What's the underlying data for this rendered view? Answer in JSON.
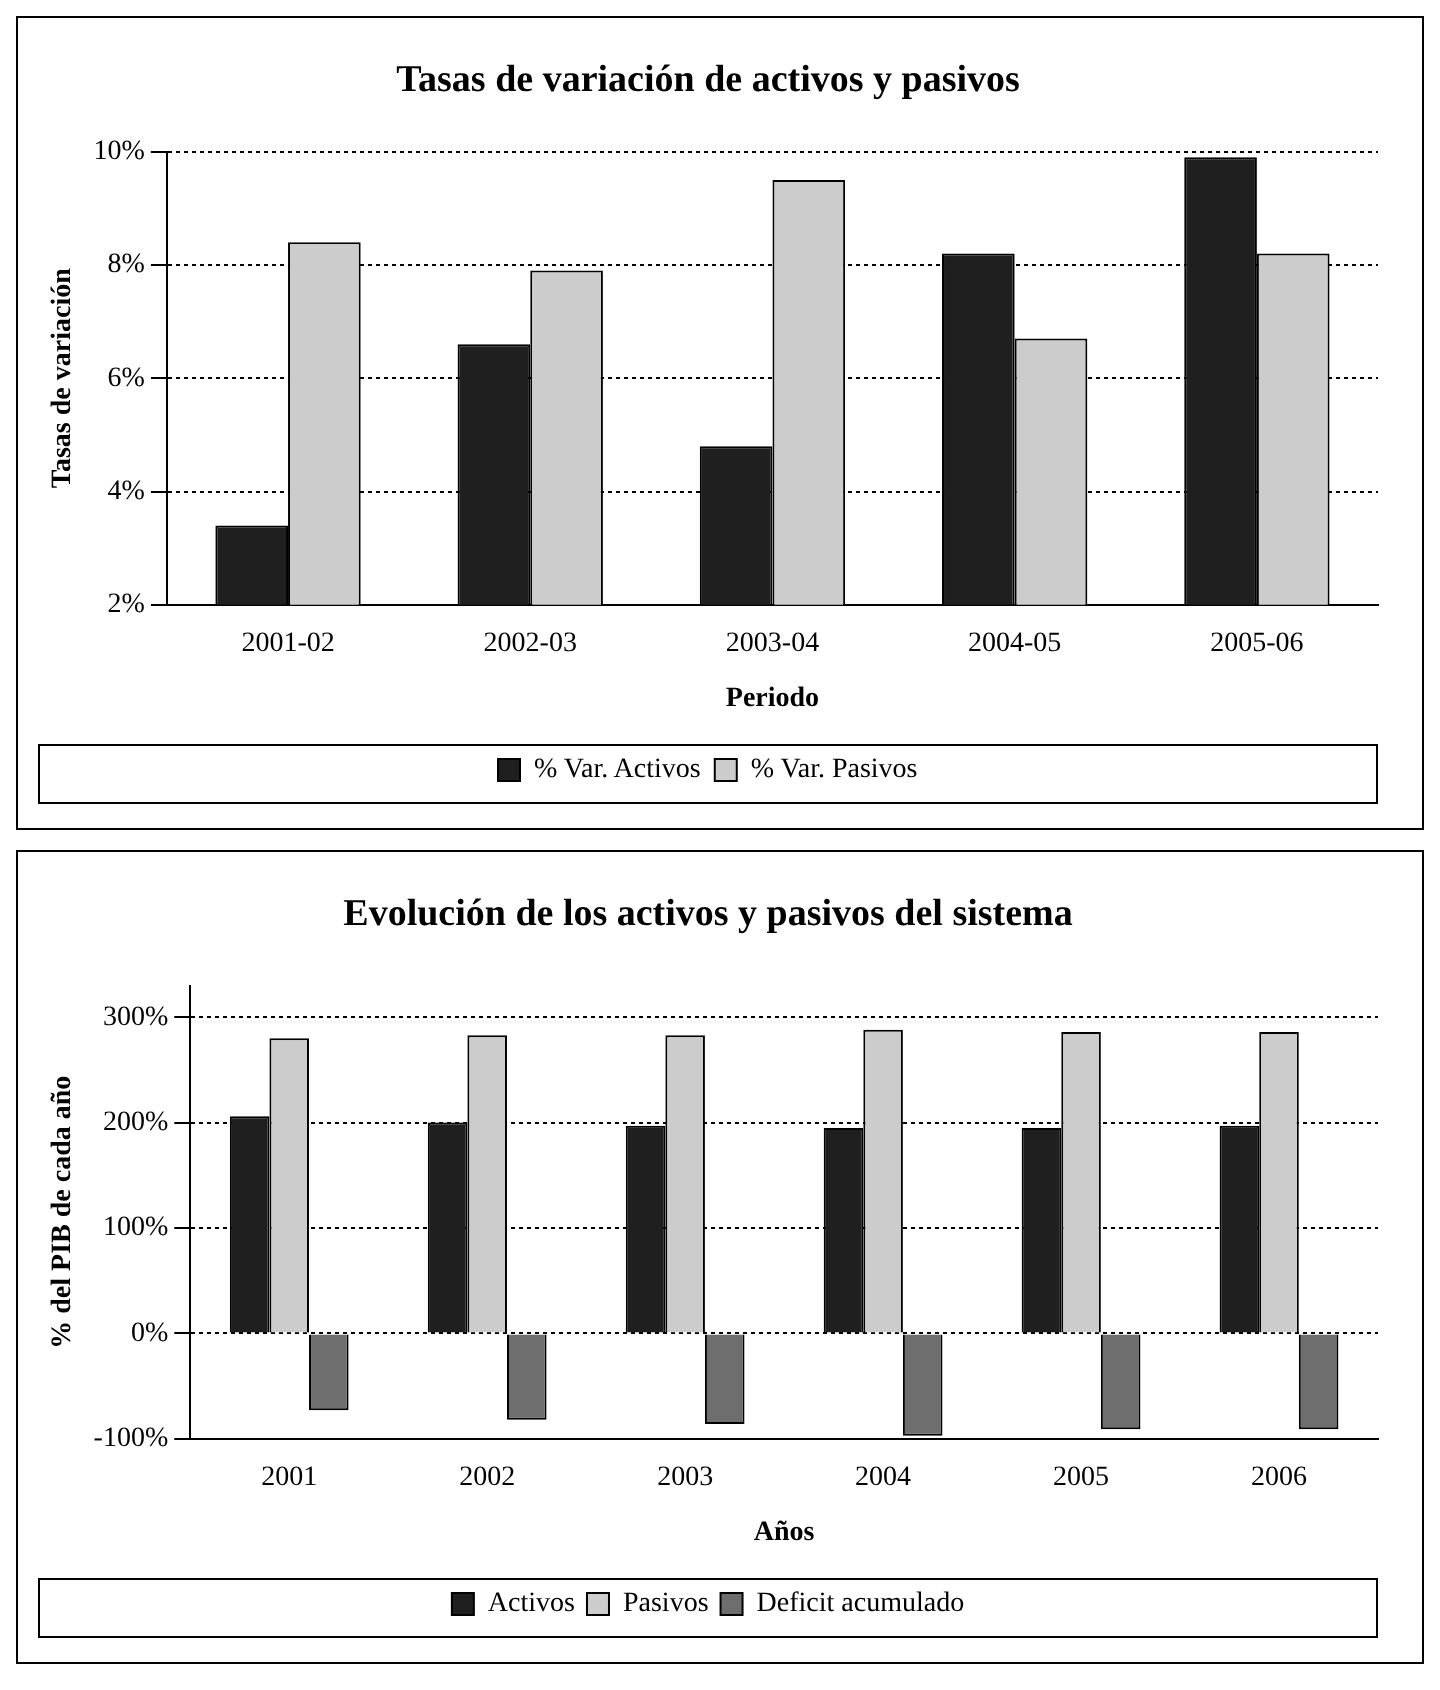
{
  "chart_data": [
    {
      "type": "bar",
      "title": "Tasas de variación de activos y pasivos",
      "xlabel": "Periodo",
      "ylabel": "Tasas de variación",
      "categories": [
        "2001-02",
        "2002-03",
        "2003-04",
        "2004-05",
        "2005-06"
      ],
      "series": [
        {
          "name": "% Var. Activos",
          "color": "#1f1f1f",
          "values": [
            3.4,
            6.6,
            4.8,
            8.2,
            9.9
          ]
        },
        {
          "name": "% Var. Pasivos",
          "color": "#cccccc",
          "values": [
            8.4,
            7.9,
            9.5,
            6.7,
            8.2
          ]
        }
      ],
      "ylim": [
        2,
        10
      ],
      "yticks": [
        {
          "value": 2,
          "label": "2%"
        },
        {
          "value": 4,
          "label": "4%"
        },
        {
          "value": 6,
          "label": "6%"
        },
        {
          "value": 8,
          "label": "8%"
        },
        {
          "value": 10,
          "label": "10%"
        }
      ],
      "grid": "y",
      "legend": "bottom"
    },
    {
      "type": "bar",
      "title": "Evolución de los activos y pasivos del sistema",
      "xlabel": "Años",
      "ylabel": "% del PIB de cada año",
      "categories": [
        "2001",
        "2002",
        "2003",
        "2004",
        "2005",
        "2006"
      ],
      "series": [
        {
          "name": "Activos",
          "color": "#1f1f1f",
          "values": [
            206,
            200,
            197,
            195,
            195,
            197
          ]
        },
        {
          "name": "Pasivos",
          "color": "#cccccc",
          "values": [
            280,
            283,
            283,
            288,
            286,
            286
          ]
        },
        {
          "name": "Deficit acumulado",
          "color": "#6e6e6e",
          "values": [
            -73,
            -82,
            -86,
            -97,
            -91,
            -91
          ]
        }
      ],
      "ylim": [
        -100,
        330
      ],
      "yticks": [
        {
          "value": -100,
          "label": "-100%"
        },
        {
          "value": 0,
          "label": "0%"
        },
        {
          "value": 100,
          "label": "100%"
        },
        {
          "value": 200,
          "label": "200%"
        },
        {
          "value": 300,
          "label": "300%"
        }
      ],
      "grid": "y",
      "legend": "bottom"
    }
  ]
}
